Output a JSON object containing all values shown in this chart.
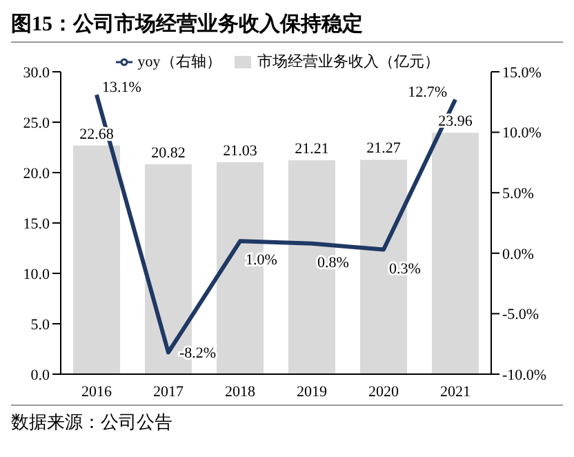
{
  "chart_data": {
    "type": "bar",
    "title": "图15：公司市场经营业务收入保持稳定",
    "annotations": [
      "数据来源：公司公告"
    ],
    "categories": [
      "2016",
      "2017",
      "2018",
      "2019",
      "2020",
      "2021"
    ],
    "series": [
      {
        "name": "市场经营业务收入（亿元）",
        "color": "#d9d9d9",
        "values": [
          22.68,
          20.82,
          21.03,
          21.21,
          21.27,
          23.96
        ],
        "value_labels": [
          "22.68",
          "20.82",
          "21.03",
          "21.21",
          "21.27",
          "23.96"
        ]
      },
      {
        "name": "yoy（右轴）",
        "type": "line",
        "axis": "y2",
        "color": "#1f3864",
        "values": [
          13.1,
          -8.2,
          1.0,
          0.8,
          0.3,
          12.7
        ],
        "value_labels": [
          "13.1%",
          "-8.2%",
          "1.0%",
          "0.8%",
          "0.3%",
          "12.7%"
        ]
      }
    ],
    "ylim": [
      0,
      30
    ],
    "yticks": [
      {
        "value": 0,
        "label": "0.0"
      },
      {
        "value": 5,
        "label": "5.0"
      },
      {
        "value": 10,
        "label": "10.0"
      },
      {
        "value": 15,
        "label": "15.0"
      },
      {
        "value": 20,
        "label": "20.0"
      },
      {
        "value": 25,
        "label": "25.0"
      },
      {
        "value": 30,
        "label": "30.0"
      }
    ],
    "y2lim": [
      -10,
      15
    ],
    "y2ticks": [
      {
        "value": -10,
        "label": "-10.0%"
      },
      {
        "value": -5,
        "label": "-5.0%"
      },
      {
        "value": 0,
        "label": "0.0%"
      },
      {
        "value": 5,
        "label": "5.0%"
      },
      {
        "value": 10,
        "label": "10.0%"
      },
      {
        "value": 15,
        "label": "15.0%"
      }
    ],
    "legend": "top",
    "grid": false,
    "marker": "none"
  }
}
